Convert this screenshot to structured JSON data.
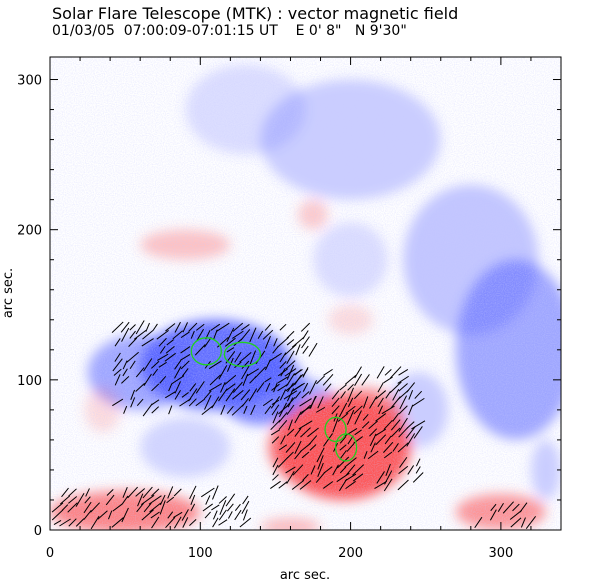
{
  "header": {
    "title": "Solar Flare Telescope (MTK) : vector magnetic field",
    "subtitle": "01/03/05  07:00:09-07:01:15 UT    E 0' 8\"   N 9'30\""
  },
  "chart_data": {
    "type": "heatmap",
    "xlabel": "arc sec.",
    "ylabel": "arc sec.",
    "xlim": [
      0,
      340
    ],
    "ylim": [
      0,
      315
    ],
    "xticks": [
      "0",
      "100",
      "200",
      "300"
    ],
    "yticks": [
      "0",
      "100",
      "200",
      "300"
    ],
    "colors": {
      "positive": "#ff4d4d",
      "negative": "#4f5cff",
      "contour": "#20d020",
      "vector": "#000000"
    },
    "positive_regions": [
      {
        "x": 195,
        "y": 55,
        "rx": 45,
        "ry": 35,
        "strength": 0.95
      },
      {
        "x": 175,
        "y": 55,
        "rx": 30,
        "ry": 25,
        "strength": 0.7
      },
      {
        "x": 210,
        "y": 75,
        "rx": 25,
        "ry": 20,
        "strength": 0.6
      },
      {
        "x": 50,
        "y": 12,
        "rx": 50,
        "ry": 14,
        "strength": 0.7
      },
      {
        "x": 300,
        "y": 12,
        "rx": 30,
        "ry": 12,
        "strength": 0.6
      },
      {
        "x": 160,
        "y": 2,
        "rx": 20,
        "ry": 6,
        "strength": 0.4
      },
      {
        "x": 90,
        "y": 190,
        "rx": 30,
        "ry": 10,
        "strength": 0.35
      },
      {
        "x": 175,
        "y": 210,
        "rx": 10,
        "ry": 10,
        "strength": 0.3
      },
      {
        "x": 200,
        "y": 140,
        "rx": 15,
        "ry": 10,
        "strength": 0.2
      },
      {
        "x": 35,
        "y": 80,
        "rx": 12,
        "ry": 15,
        "strength": 0.2
      }
    ],
    "negative_regions": [
      {
        "x": 110,
        "y": 110,
        "rx": 50,
        "ry": 30,
        "strength": 0.9
      },
      {
        "x": 140,
        "y": 95,
        "rx": 30,
        "ry": 25,
        "strength": 0.75
      },
      {
        "x": 60,
        "y": 105,
        "rx": 35,
        "ry": 25,
        "strength": 0.55
      },
      {
        "x": 170,
        "y": 85,
        "rx": 20,
        "ry": 15,
        "strength": 0.55
      },
      {
        "x": 310,
        "y": 120,
        "rx": 40,
        "ry": 60,
        "strength": 0.55
      },
      {
        "x": 280,
        "y": 180,
        "rx": 45,
        "ry": 50,
        "strength": 0.35
      },
      {
        "x": 200,
        "y": 260,
        "rx": 60,
        "ry": 40,
        "strength": 0.3
      },
      {
        "x": 130,
        "y": 280,
        "rx": 40,
        "ry": 30,
        "strength": 0.2
      },
      {
        "x": 245,
        "y": 80,
        "rx": 20,
        "ry": 25,
        "strength": 0.3
      },
      {
        "x": 90,
        "y": 55,
        "rx": 30,
        "ry": 20,
        "strength": 0.25
      },
      {
        "x": 200,
        "y": 180,
        "rx": 25,
        "ry": 25,
        "strength": 0.2
      },
      {
        "x": 330,
        "y": 40,
        "rx": 10,
        "ry": 20,
        "strength": 0.3
      }
    ],
    "vector_regions": [
      {
        "x0": 45,
        "x1": 175,
        "y0": 80,
        "y1": 135
      },
      {
        "x0": 150,
        "x1": 245,
        "y0": 30,
        "y1": 105
      },
      {
        "x0": 5,
        "x1": 130,
        "y0": 5,
        "y1": 25
      },
      {
        "x0": 285,
        "x1": 320,
        "y0": 5,
        "y1": 15
      }
    ],
    "contours": [
      {
        "x": 104,
        "y": 119,
        "rx": 10,
        "ry": 9
      },
      {
        "x": 128,
        "y": 117,
        "rx": 12,
        "ry": 8
      },
      {
        "x": 190,
        "y": 67,
        "rx": 7,
        "ry": 8
      },
      {
        "x": 197,
        "y": 55,
        "rx": 7,
        "ry": 9
      }
    ]
  }
}
